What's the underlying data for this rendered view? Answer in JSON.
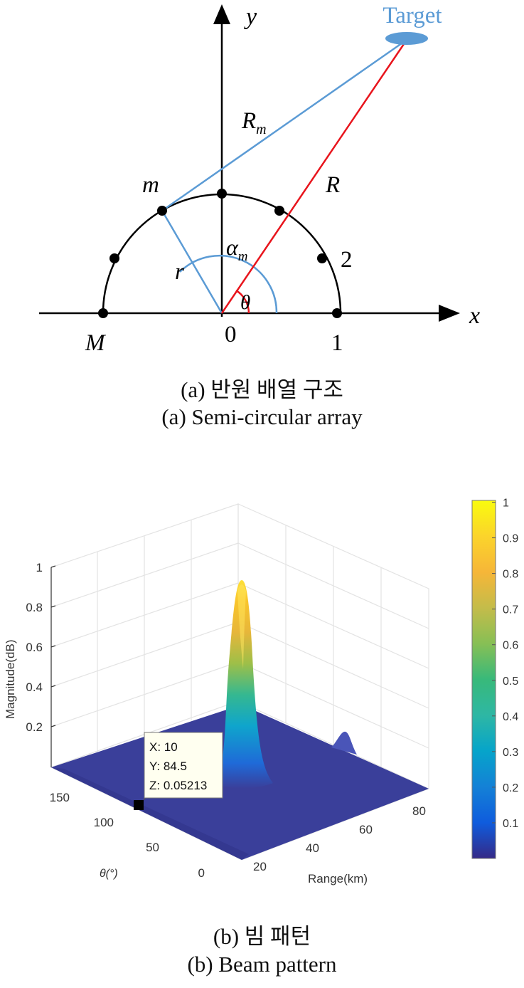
{
  "figure_a": {
    "labels": {
      "target": "Target",
      "y_axis": "y",
      "x_axis": "x",
      "rm_main": "R",
      "rm_sub": "m",
      "r_big": "R",
      "m_label": "m",
      "alpha_main": "α",
      "alpha_sub": "m",
      "r_small": "r",
      "theta": "θ",
      "two": "2",
      "one": "1",
      "zero": "0",
      "M_label": "M"
    },
    "caption_ko": "(a) 반원 배열 구조",
    "caption_en": "(a) Semi-circular array",
    "colors": {
      "blue": "#5b9bd5",
      "red": "#e8141c",
      "black": "#000000",
      "target_fill": "#5b9bd5"
    }
  },
  "figure_b": {
    "axis_labels": {
      "z": "Magnitude(dB)",
      "x": "Range(km)",
      "y": "θ(°)"
    },
    "z_ticks": [
      "1",
      "0.8",
      "0.6",
      "0.4",
      "0.2"
    ],
    "range_ticks": [
      "20",
      "40",
      "60",
      "80"
    ],
    "theta_ticks": [
      "150",
      "100",
      "50",
      "0"
    ],
    "colorbar_ticks": [
      "1",
      "0.9",
      "0.8",
      "0.7",
      "0.6",
      "0.5",
      "0.4",
      "0.3",
      "0.2",
      "0.1"
    ],
    "datatip": {
      "x": "X: 10",
      "y": "Y: 84.5",
      "z": "Z: 0.05213"
    },
    "caption_ko": "(b) 빔 패턴",
    "caption_en": "(b) Beam pattern",
    "colors": {
      "floor": "#3a3f9a",
      "floor_dark": "#30348a",
      "grid": "#e0e0e0",
      "tip_bg": "#fffff0"
    }
  }
}
